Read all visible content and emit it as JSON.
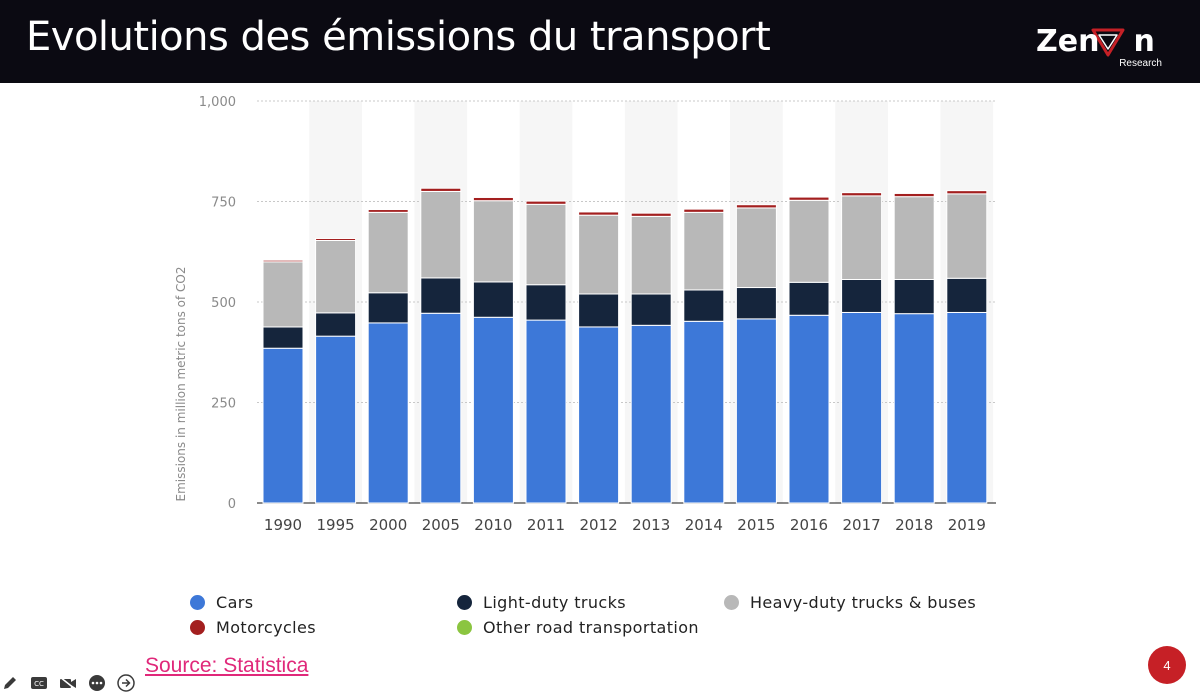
{
  "slide": {
    "title": "Evolutions des émissions du transport",
    "brand": "ZenVn",
    "brand_sub": "Research",
    "source": "Source: Statistica",
    "page_number": "4"
  },
  "colors": {
    "header_bg": "#0b0a12",
    "brand_accent": "#c62026",
    "source_link": "#e0287a"
  },
  "toolbar": {
    "icons": [
      "edit-pen-icon",
      "closed-captions-icon",
      "video-off-icon",
      "more-icon",
      "next-arrow-icon"
    ]
  },
  "chart_data": {
    "type": "bar",
    "stacked": true,
    "categories": [
      "1990",
      "1995",
      "2000",
      "2005",
      "2010",
      "2011",
      "2012",
      "2013",
      "2014",
      "2015",
      "2016",
      "2017",
      "2018",
      "2019"
    ],
    "series": [
      {
        "name": "Cars",
        "color": "#3d78d8",
        "values": [
          385,
          415,
          448,
          472,
          462,
          455,
          438,
          442,
          452,
          458,
          467,
          474,
          471,
          474
        ]
      },
      {
        "name": "Light-duty trucks",
        "color": "#15253c",
        "values": [
          53,
          58,
          75,
          88,
          88,
          88,
          82,
          78,
          78,
          78,
          82,
          82,
          85,
          85
        ]
      },
      {
        "name": "Heavy-duty trucks & buses",
        "color": "#b8b8b8",
        "values": [
          162,
          180,
          200,
          215,
          202,
          200,
          196,
          193,
          193,
          198,
          204,
          208,
          206,
          210
        ]
      },
      {
        "name": "Motorcycles",
        "color": "#a31f1f",
        "values": [
          4,
          5,
          7,
          8,
          8,
          8,
          8,
          8,
          8,
          8,
          8,
          8,
          8,
          8
        ]
      },
      {
        "name": "Other road transportation",
        "color": "#8bc540",
        "values": [
          0,
          0,
          0,
          0,
          0,
          0,
          0,
          0,
          0,
          0,
          0,
          0,
          0,
          0
        ]
      }
    ],
    "ylim": [
      0,
      1000
    ],
    "yticks": [
      0,
      250,
      500,
      750,
      1000
    ],
    "ytick_labels": [
      "0",
      "250",
      "500",
      "750",
      "1,000"
    ],
    "ylabel": "Emissions in million metric tons of CO2",
    "xlabel": "",
    "grid": true,
    "legend_position": "bottom"
  }
}
